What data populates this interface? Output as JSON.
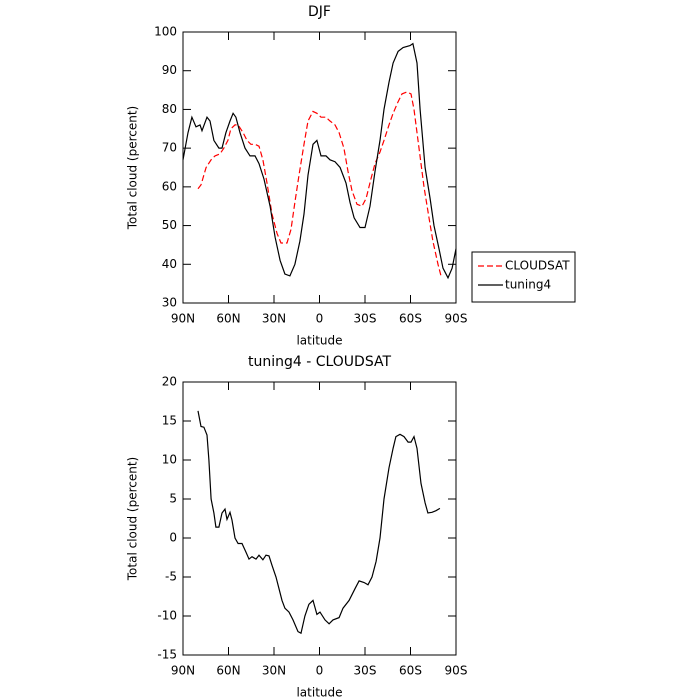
{
  "chart_data": [
    {
      "type": "line",
      "title": "DJF",
      "xlabel": "latitude",
      "ylabel": "Total cloud (percent)",
      "xlim": [
        90,
        -90
      ],
      "xticks": [
        {
          "value": 90,
          "label": "90N"
        },
        {
          "value": 60,
          "label": "60N"
        },
        {
          "value": 30,
          "label": "30N"
        },
        0,
        {
          "value": -30,
          "label": "30S"
        },
        {
          "value": -60,
          "label": "60S"
        },
        {
          "value": -90,
          "label": "90S"
        }
      ],
      "ylim": [
        30,
        100
      ],
      "yticks": [
        30,
        40,
        50,
        60,
        70,
        80,
        90,
        100
      ],
      "legend": "outside right",
      "series": [
        {
          "name": "CLOUDSAT",
          "color": "#ff0000",
          "dash": "dashed",
          "x": [
            80.1,
            78.1,
            74.8,
            71.5,
            68.9,
            65.6,
            63.0,
            60.4,
            58.4,
            55.7,
            53.7,
            50.4,
            47.8,
            45.2,
            42.5,
            39.9,
            37.3,
            34.6,
            31.3,
            28.0,
            25.4,
            21.4,
            18.8,
            16.2,
            13.5,
            10.2,
            7.6,
            4.3,
            1.7,
            -1.0,
            -4.3,
            -6.9,
            -10.2,
            -12.9,
            -16.1,
            -18.8,
            -21.4,
            -24.7,
            -28.0,
            -30.7,
            -33.9,
            -36.6,
            -39.9,
            -42.5,
            -45.8,
            -48.5,
            -51.8,
            -54.4,
            -57.7,
            -60.3,
            -62.3,
            -65.6,
            -68.9,
            -72.2,
            -74.8,
            -78.1,
            -80.1
          ],
          "values": [
            59.5,
            60.5,
            65,
            67,
            68,
            68.5,
            70,
            72,
            75,
            76,
            76,
            74,
            72,
            71,
            71,
            70.5,
            67,
            61,
            53,
            48,
            45.5,
            45.5,
            49,
            56,
            63,
            71,
            77,
            79.5,
            79,
            78,
            78,
            77,
            76,
            74,
            70,
            64,
            59,
            55.5,
            55,
            57,
            62,
            66,
            69,
            72,
            76,
            79,
            82,
            84,
            84.5,
            84,
            80,
            70,
            60,
            52,
            46,
            40,
            37
          ]
        },
        {
          "name": "tuning4",
          "color": "#000000",
          "dash": "solid",
          "x": [
            90,
            86.7,
            84.1,
            81.4,
            78.8,
            77.5,
            74.2,
            72.2,
            69.6,
            66.3,
            64.3,
            61.7,
            59.0,
            57.0,
            55.1,
            52.4,
            49.1,
            45.8,
            42.5,
            39.9,
            36.6,
            32.6,
            29.3,
            26.0,
            22.8,
            19.5,
            16.2,
            12.9,
            10.2,
            7.6,
            4.3,
            1.7,
            -1.0,
            -4.3,
            -6.9,
            -10.2,
            -13.6,
            -17.5,
            -20.1,
            -22.8,
            -26.7,
            -30.0,
            -33.3,
            -36.6,
            -39.9,
            -42.5,
            -45.8,
            -48.5,
            -51.8,
            -55.1,
            -59.7,
            -61.6,
            -64.3,
            -66.3,
            -69.6,
            -72.9,
            -75.5,
            -78.8,
            -81.4,
            -84.7,
            -87.4,
            -90
          ],
          "values": [
            67,
            74,
            78,
            75.5,
            76,
            74.5,
            78,
            77,
            72,
            70,
            70,
            74,
            77,
            79,
            78,
            74,
            70,
            68,
            68,
            66,
            62,
            55,
            47,
            41,
            37.5,
            37,
            40,
            46,
            53,
            63,
            71,
            72,
            68,
            68,
            67,
            66.5,
            65,
            61,
            56,
            52,
            49.5,
            49.5,
            55,
            64,
            72,
            80,
            87,
            92,
            95,
            96,
            96.5,
            97,
            92,
            80,
            65,
            57,
            50,
            44,
            39,
            36.5,
            39,
            44
          ]
        }
      ]
    },
    {
      "type": "line",
      "title": "tuning4 - CLOUDSAT",
      "xlabel": "latitude",
      "ylabel": "Total cloud (percent)",
      "xlim": [
        90,
        -90
      ],
      "xticks": [
        {
          "value": 90,
          "label": "90N"
        },
        {
          "value": 60,
          "label": "60N"
        },
        {
          "value": 30,
          "label": "30N"
        },
        0,
        {
          "value": -30,
          "label": "30S"
        },
        {
          "value": -60,
          "label": "60S"
        },
        {
          "value": -90,
          "label": "90S"
        }
      ],
      "ylim": [
        -15,
        20
      ],
      "yticks": [
        -15,
        -10,
        -5,
        0,
        5,
        10,
        15,
        20
      ],
      "series": [
        {
          "color": "#000000",
          "dash": "solid",
          "x": [
            80.1,
            78.1,
            76.2,
            74.2,
            72.9,
            71.5,
            69.6,
            68.3,
            66.3,
            64.3,
            62.3,
            61.0,
            59.0,
            57.7,
            55.7,
            53.7,
            51.1,
            48.5,
            46.5,
            44.5,
            41.9,
            39.9,
            37.3,
            35.3,
            33.3,
            31.3,
            28.7,
            26.7,
            24.7,
            22.8,
            20.1,
            17.5,
            14.2,
            12.2,
            9.6,
            7.0,
            4.3,
            1.7,
            -0.3,
            -3.6,
            -6.3,
            -8.9,
            -12.9,
            -15.5,
            -19.5,
            -23.4,
            -26.1,
            -29.4,
            -32.0,
            -34.6,
            -37.3,
            -39.9,
            -42.5,
            -45.8,
            -48.5,
            -50.4,
            -53.1,
            -55.7,
            -58.4,
            -60.3,
            -62.3,
            -64.3,
            -66.9,
            -69.6,
            -71.5,
            -74.2,
            -76.8,
            -79.4
          ],
          "values": [
            16.3,
            14.3,
            14.2,
            13.2,
            10,
            5,
            3.2,
            1.4,
            1.4,
            3.2,
            3.7,
            2.4,
            3.3,
            2.3,
            0,
            -0.7,
            -0.7,
            -1.8,
            -2.7,
            -2.4,
            -2.7,
            -2.2,
            -2.8,
            -2.2,
            -2.3,
            -3.5,
            -5,
            -6.5,
            -8,
            -9,
            -9.5,
            -10.5,
            -12,
            -12.2,
            -10,
            -8.5,
            -8,
            -9.8,
            -9.5,
            -10.5,
            -11,
            -10.5,
            -10.2,
            -9,
            -8,
            -6.5,
            -5.5,
            -5.7,
            -6,
            -5,
            -3,
            0,
            5,
            9,
            11.5,
            13,
            13.3,
            13,
            12.3,
            12.3,
            13,
            11.5,
            7,
            4.5,
            3.2,
            3.3,
            3.5,
            3.8
          ]
        }
      ]
    }
  ]
}
